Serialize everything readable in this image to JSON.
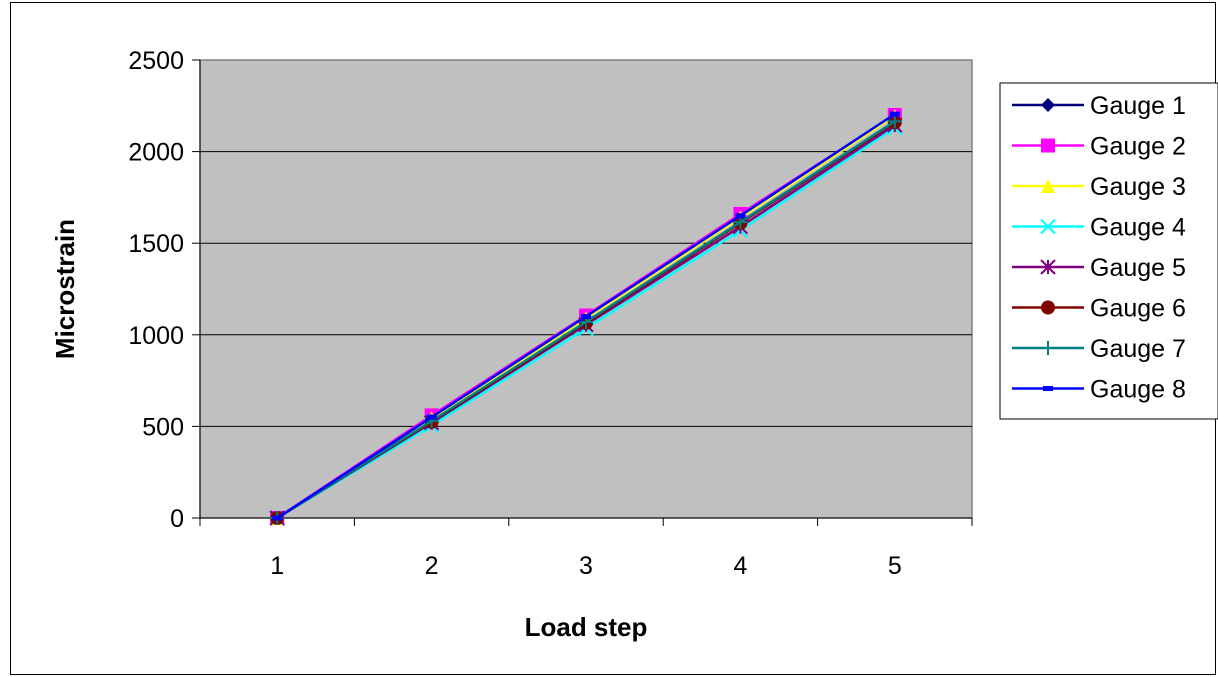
{
  "chart_data": {
    "type": "line",
    "title": "",
    "xlabel": "Load step",
    "ylabel": "Microstrain",
    "categories": [
      "1",
      "2",
      "3",
      "4",
      "5"
    ],
    "ylim": [
      0,
      2500
    ],
    "yticks": [
      "0",
      "500",
      "1000",
      "1500",
      "2000",
      "2500"
    ],
    "grid": true,
    "legend": "right",
    "plot_background": "#c0c0c0",
    "series": [
      {
        "name": "Gauge 1",
        "color": "#000080",
        "marker": "diamond",
        "values": [
          0,
          550,
          1095,
          1645,
          2200
        ]
      },
      {
        "name": "Gauge 2",
        "color": "#ff00ff",
        "marker": "square",
        "values": [
          0,
          560,
          1105,
          1660,
          2200
        ]
      },
      {
        "name": "Gauge 3",
        "color": "#ffff00",
        "marker": "triangle",
        "values": [
          0,
          545,
          1090,
          1640,
          2195
        ]
      },
      {
        "name": "Gauge 4",
        "color": "#00ffff",
        "marker": "x",
        "values": [
          0,
          505,
          1035,
          1570,
          2130
        ]
      },
      {
        "name": "Gauge 5",
        "color": "#800080",
        "marker": "star",
        "values": [
          0,
          520,
          1055,
          1590,
          2145
        ]
      },
      {
        "name": "Gauge 6",
        "color": "#800000",
        "marker": "circle",
        "values": [
          0,
          525,
          1065,
          1610,
          2160
        ]
      },
      {
        "name": "Gauge 7",
        "color": "#008080",
        "marker": "plus",
        "values": [
          0,
          530,
          1070,
          1615,
          2165
        ]
      },
      {
        "name": "Gauge 8",
        "color": "#0000ff",
        "marker": "dash",
        "values": [
          0,
          550,
          1100,
          1650,
          2205
        ]
      }
    ]
  }
}
